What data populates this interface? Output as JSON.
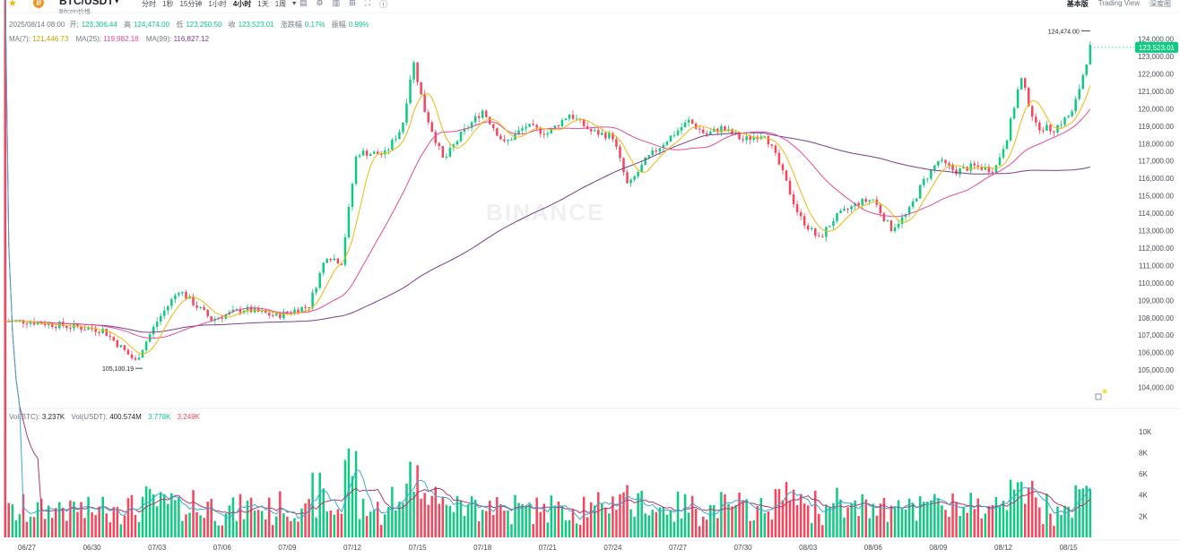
{
  "header": {
    "pair": "BTC/USDT",
    "subtitle": "Bitcoin价格",
    "intervals": [
      "分时",
      "1秒",
      "15分钟",
      "1小时",
      "4小时",
      "1天",
      "1周"
    ],
    "active_interval": "4小时",
    "views": [
      "基本版",
      "Trading View",
      "深度图"
    ],
    "active_view": "基本版",
    "accent_colors": {
      "up": "#0ecb81",
      "down": "#f6465d",
      "ma7": "#f0b90b",
      "ma25": "#e64b9a",
      "ma99": "#7b3f8e"
    }
  },
  "ohlc": {
    "time": "2025/08/14 08:00",
    "open_label": "开:",
    "open": "123,306.44",
    "high_label": "高",
    "high": "124,474.00",
    "low_label": "低",
    "low": "123,250.50",
    "close_label": "收",
    "close": "123,523.01",
    "change_label": "涨跌幅",
    "change": "0.17%",
    "amp_label": "振幅",
    "amp": "0.99%"
  },
  "ma_legend": {
    "ma7_label": "MA(7)",
    "ma7": "121,446.73",
    "ma25_label": "MA(25)",
    "ma25": "119,982.18",
    "ma99_label": "MA(99)",
    "ma99": "116,827.12"
  },
  "vol_legend": {
    "btc_label": "Vol(BTC)",
    "btc": "3.237K",
    "usdt_label": "Vol(USDT)",
    "usdt": "400.574M",
    "ma5": "3.778K",
    "ma10": "3.249K"
  },
  "chart_data": {
    "type": "candlestick",
    "price_axis": {
      "ticks": [
        104000,
        105000,
        106000,
        107000,
        108000,
        109000,
        110000,
        111000,
        112000,
        113000,
        114000,
        115000,
        116000,
        117000,
        118000,
        119000,
        120000,
        121000,
        122000,
        123000,
        124000
      ],
      "range": [
        103000,
        124700
      ]
    },
    "volume_axis": {
      "ticks": [
        2000,
        4000,
        6000,
        8000,
        10000
      ],
      "tick_labels": [
        "2K",
        "4K",
        "6K",
        "8K",
        "10K"
      ],
      "range": [
        0,
        11000
      ]
    },
    "x_ticks": [
      "06/27",
      "06/30",
      "07/03",
      "07/06",
      "07/09",
      "07/12",
      "07/15",
      "07/18",
      "07/21",
      "07/24",
      "07/27",
      "07/30",
      "08/03",
      "08/06",
      "08/09",
      "08/12",
      "08/15"
    ],
    "key_points": [
      {
        "day": 0,
        "price": 107800
      },
      {
        "day": 2,
        "price": 107500
      },
      {
        "day": 3.5,
        "price": 107300
      },
      {
        "day": 5,
        "price": 105500
      },
      {
        "day": 6,
        "price": 107800
      },
      {
        "day": 7,
        "price": 109600
      },
      {
        "day": 8.5,
        "price": 107900
      },
      {
        "day": 10,
        "price": 108500
      },
      {
        "day": 11.5,
        "price": 108100
      },
      {
        "day": 13,
        "price": 108700
      },
      {
        "day": 13.8,
        "price": 111600
      },
      {
        "day": 14.5,
        "price": 111200
      },
      {
        "day": 15.2,
        "price": 117500
      },
      {
        "day": 16.5,
        "price": 117400
      },
      {
        "day": 17.3,
        "price": 119000
      },
      {
        "day": 17.8,
        "price": 122800
      },
      {
        "day": 18.3,
        "price": 120000
      },
      {
        "day": 19.2,
        "price": 117000
      },
      {
        "day": 20,
        "price": 118500
      },
      {
        "day": 21,
        "price": 119900
      },
      {
        "day": 22,
        "price": 118000
      },
      {
        "day": 23,
        "price": 119000
      },
      {
        "day": 24,
        "price": 118600
      },
      {
        "day": 25,
        "price": 119700
      },
      {
        "day": 26,
        "price": 118700
      },
      {
        "day": 27,
        "price": 118400
      },
      {
        "day": 27.7,
        "price": 115500
      },
      {
        "day": 28.5,
        "price": 117000
      },
      {
        "day": 29.3,
        "price": 118000
      },
      {
        "day": 30.5,
        "price": 119300
      },
      {
        "day": 31.3,
        "price": 118500
      },
      {
        "day": 32,
        "price": 118900
      },
      {
        "day": 33,
        "price": 118200
      },
      {
        "day": 34,
        "price": 118600
      },
      {
        "day": 34.6,
        "price": 117000
      },
      {
        "day": 35.6,
        "price": 113800
      },
      {
        "day": 36.5,
        "price": 112500
      },
      {
        "day": 37.2,
        "price": 113700
      },
      {
        "day": 38.3,
        "price": 114600
      },
      {
        "day": 39,
        "price": 114800
      },
      {
        "day": 39.8,
        "price": 113100
      },
      {
        "day": 40.6,
        "price": 114000
      },
      {
        "day": 41.3,
        "price": 115800
      },
      {
        "day": 42,
        "price": 117000
      },
      {
        "day": 42.8,
        "price": 116400
      },
      {
        "day": 43.6,
        "price": 116700
      },
      {
        "day": 44.6,
        "price": 116500
      },
      {
        "day": 45.2,
        "price": 118500
      },
      {
        "day": 45.8,
        "price": 121800
      },
      {
        "day": 46.5,
        "price": 119000
      },
      {
        "day": 47.3,
        "price": 118800
      },
      {
        "day": 48.2,
        "price": 119800
      },
      {
        "day": 49,
        "price": 123520
      }
    ],
    "annotations": [
      {
        "label": "124,474.00",
        "price": 124474
      },
      {
        "label": "105,100.19",
        "price": 105100.19
      },
      {
        "label": "123,523.01",
        "price": 123523.01
      }
    ],
    "watermark": "BINANCE"
  }
}
